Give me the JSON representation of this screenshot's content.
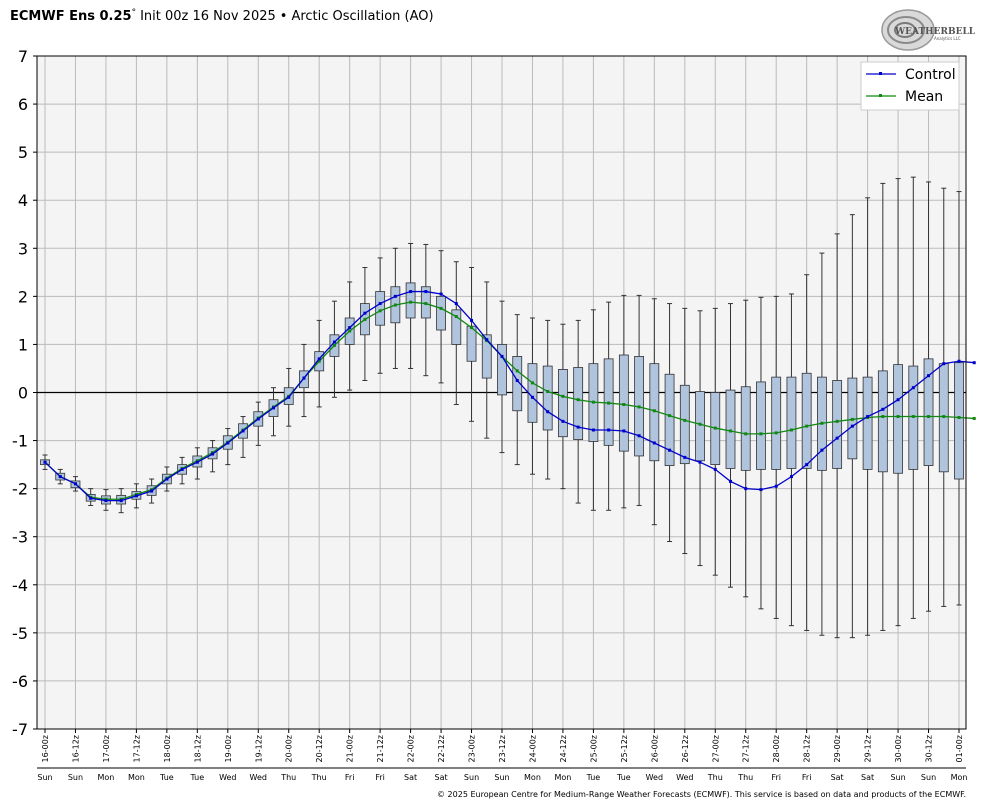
{
  "header": {
    "model": "ECMWF Ens 0.25",
    "degree": "°",
    "init": "Init 00z 16 Nov 2025",
    "bullet": "•",
    "index": "Arctic Oscillation (AO)"
  },
  "logo": {
    "text": "WEATHERBELL",
    "subtext": "Analytics LLC"
  },
  "copyright": "© 2025 European Centre for Medium-Range Weather Forecasts (ECMWF). This service is based on data and products of the ECMWF.",
  "colors": {
    "control": "#0000cc",
    "mean": "#118811",
    "box_fill": "#b0c4de",
    "plot_bg": "#f4f4f4",
    "grid": "#bbbbbb"
  },
  "chart_data": {
    "type": "box",
    "ylim": [
      -7,
      7
    ],
    "yticks": [
      -7,
      -6,
      -5,
      -4,
      -3,
      -2,
      -1,
      0,
      1,
      2,
      3,
      4,
      5,
      6,
      7
    ],
    "legend_position": "top-right",
    "grid": true,
    "x_tick_labels": [
      "16-00z",
      "16-12z",
      "17-00z",
      "17-12z",
      "18-00z",
      "18-12z",
      "19-00z",
      "19-12z",
      "20-00z",
      "20-12z",
      "21-00z",
      "21-12z",
      "22-00z",
      "22-12z",
      "23-00z",
      "23-12z",
      "24-00z",
      "24-12z",
      "25-00z",
      "25-12z",
      "26-00z",
      "26-12z",
      "27-00z",
      "27-12z",
      "28-00z",
      "28-12z",
      "29-00z",
      "29-12z",
      "30-00z",
      "30-12z",
      "01-00z"
    ],
    "x_day_labels": [
      "Sun",
      "Sun",
      "Mon",
      "Mon",
      "Tue",
      "Tue",
      "Wed",
      "Wed",
      "Thu",
      "Thu",
      "Fri",
      "Fri",
      "Sat",
      "Sat",
      "Sun",
      "Sun",
      "Mon",
      "Mon",
      "Tue",
      "Tue",
      "Wed",
      "Wed",
      "Thu",
      "Thu",
      "Fri",
      "Fri",
      "Sat",
      "Sat",
      "Sun",
      "Sun",
      "Mon"
    ],
    "series": [
      {
        "name": "Control",
        "values": [
          -1.45,
          -1.75,
          -1.9,
          -2.2,
          -2.25,
          -2.25,
          -2.15,
          -2.05,
          -1.8,
          -1.6,
          -1.45,
          -1.28,
          -1.05,
          -0.8,
          -0.55,
          -0.32,
          -0.1,
          0.3,
          0.7,
          1.05,
          1.35,
          1.65,
          1.85,
          2.0,
          2.1,
          2.1,
          2.05,
          1.85,
          1.5,
          1.1,
          0.75,
          0.25,
          -0.1,
          -0.4,
          -0.6,
          -0.72,
          -0.78,
          -0.78,
          -0.8,
          -0.9,
          -1.05,
          -1.2,
          -1.35,
          -1.45,
          -1.6,
          -1.85,
          -2.0,
          -2.02,
          -1.95,
          -1.75,
          -1.5,
          -1.2,
          -0.95,
          -0.7,
          -0.5,
          -0.35,
          -0.15,
          0.1,
          0.35,
          0.6,
          0.65,
          0.62
        ]
      },
      {
        "name": "Mean",
        "values": [
          -1.45,
          -1.75,
          -1.9,
          -2.18,
          -2.22,
          -2.22,
          -2.12,
          -2.02,
          -1.78,
          -1.58,
          -1.42,
          -1.25,
          -1.03,
          -0.78,
          -0.53,
          -0.3,
          -0.08,
          0.3,
          0.65,
          0.98,
          1.28,
          1.52,
          1.7,
          1.82,
          1.88,
          1.85,
          1.75,
          1.58,
          1.35,
          1.08,
          0.75,
          0.45,
          0.2,
          0.02,
          -0.08,
          -0.15,
          -0.2,
          -0.22,
          -0.25,
          -0.3,
          -0.38,
          -0.48,
          -0.58,
          -0.66,
          -0.74,
          -0.8,
          -0.86,
          -0.86,
          -0.84,
          -0.78,
          -0.7,
          -0.64,
          -0.6,
          -0.56,
          -0.52,
          -0.5,
          -0.5,
          -0.5,
          -0.5,
          -0.5,
          -0.52,
          -0.54
        ]
      }
    ],
    "boxes": [
      {
        "q1": -1.5,
        "q3": -1.4,
        "min": -1.6,
        "max": -1.3
      },
      {
        "q1": -1.82,
        "q3": -1.68,
        "min": -1.9,
        "max": -1.6
      },
      {
        "q1": -1.98,
        "q3": -1.84,
        "min": -2.05,
        "max": -1.75
      },
      {
        "q1": -2.26,
        "q3": -2.12,
        "min": -2.35,
        "max": -2.0
      },
      {
        "q1": -2.32,
        "q3": -2.15,
        "min": -2.45,
        "max": -2.02
      },
      {
        "q1": -2.32,
        "q3": -2.14,
        "min": -2.5,
        "max": -2.0
      },
      {
        "q1": -2.22,
        "q3": -2.06,
        "min": -2.4,
        "max": -1.9
      },
      {
        "q1": -2.14,
        "q3": -1.94,
        "min": -2.3,
        "max": -1.8
      },
      {
        "q1": -1.9,
        "q3": -1.7,
        "min": -2.05,
        "max": -1.55
      },
      {
        "q1": -1.7,
        "q3": -1.5,
        "min": -1.9,
        "max": -1.35
      },
      {
        "q1": -1.55,
        "q3": -1.32,
        "min": -1.8,
        "max": -1.15
      },
      {
        "q1": -1.38,
        "q3": -1.15,
        "min": -1.65,
        "max": -1.0
      },
      {
        "q1": -1.18,
        "q3": -0.9,
        "min": -1.5,
        "max": -0.75
      },
      {
        "q1": -0.95,
        "q3": -0.65,
        "min": -1.35,
        "max": -0.5
      },
      {
        "q1": -0.7,
        "q3": -0.4,
        "min": -1.1,
        "max": -0.2
      },
      {
        "q1": -0.5,
        "q3": -0.15,
        "min": -0.9,
        "max": 0.1
      },
      {
        "q1": -0.25,
        "q3": 0.1,
        "min": -0.7,
        "max": 0.5
      },
      {
        "q1": 0.1,
        "q3": 0.45,
        "min": -0.5,
        "max": 1.0
      },
      {
        "q1": 0.45,
        "q3": 0.85,
        "min": -0.3,
        "max": 1.5
      },
      {
        "q1": 0.75,
        "q3": 1.2,
        "min": -0.1,
        "max": 1.9
      },
      {
        "q1": 1.0,
        "q3": 1.55,
        "min": 0.05,
        "max": 2.3
      },
      {
        "q1": 1.2,
        "q3": 1.85,
        "min": 0.25,
        "max": 2.6
      },
      {
        "q1": 1.4,
        "q3": 2.1,
        "min": 0.4,
        "max": 2.8
      },
      {
        "q1": 1.45,
        "q3": 2.2,
        "min": 0.5,
        "max": 3.0
      },
      {
        "q1": 1.55,
        "q3": 2.28,
        "min": 0.5,
        "max": 3.1
      },
      {
        "q1": 1.55,
        "q3": 2.2,
        "min": 0.35,
        "max": 3.08
      },
      {
        "q1": 1.3,
        "q3": 2.0,
        "min": 0.2,
        "max": 2.95
      },
      {
        "q1": 1.0,
        "q3": 1.72,
        "min": -0.25,
        "max": 2.72
      },
      {
        "q1": 0.65,
        "q3": 1.38,
        "min": -0.6,
        "max": 2.6
      },
      {
        "q1": 0.3,
        "q3": 1.2,
        "min": -0.95,
        "max": 2.3
      },
      {
        "q1": -0.05,
        "q3": 1.0,
        "min": -1.25,
        "max": 1.9
      },
      {
        "q1": -0.38,
        "q3": 0.75,
        "min": -1.5,
        "max": 1.62
      },
      {
        "q1": -0.62,
        "q3": 0.6,
        "min": -1.7,
        "max": 1.55
      },
      {
        "q1": -0.78,
        "q3": 0.55,
        "min": -1.8,
        "max": 1.5
      },
      {
        "q1": -0.92,
        "q3": 0.48,
        "min": -2.0,
        "max": 1.42
      },
      {
        "q1": -0.98,
        "q3": 0.52,
        "min": -2.3,
        "max": 1.5
      },
      {
        "q1": -1.02,
        "q3": 0.6,
        "min": -2.45,
        "max": 1.72
      },
      {
        "q1": -1.1,
        "q3": 0.7,
        "min": -2.45,
        "max": 1.88
      },
      {
        "q1": -1.22,
        "q3": 0.78,
        "min": -2.4,
        "max": 2.02
      },
      {
        "q1": -1.32,
        "q3": 0.75,
        "min": -2.35,
        "max": 2.02
      },
      {
        "q1": -1.42,
        "q3": 0.6,
        "min": -2.75,
        "max": 1.95
      },
      {
        "q1": -1.52,
        "q3": 0.38,
        "min": -3.1,
        "max": 1.85
      },
      {
        "q1": -1.48,
        "q3": 0.15,
        "min": -3.35,
        "max": 1.75
      },
      {
        "q1": -1.42,
        "q3": 0.02,
        "min": -3.6,
        "max": 1.7
      },
      {
        "q1": -1.5,
        "q3": 0.0,
        "min": -3.8,
        "max": 1.75
      },
      {
        "q1": -1.58,
        "q3": 0.05,
        "min": -4.05,
        "max": 1.85
      },
      {
        "q1": -1.62,
        "q3": 0.12,
        "min": -4.25,
        "max": 1.92
      },
      {
        "q1": -1.6,
        "q3": 0.22,
        "min": -4.5,
        "max": 1.98
      },
      {
        "q1": -1.6,
        "q3": 0.32,
        "min": -4.7,
        "max": 2.0
      },
      {
        "q1": -1.58,
        "q3": 0.32,
        "min": -4.85,
        "max": 2.05
      },
      {
        "q1": -1.58,
        "q3": 0.4,
        "min": -4.95,
        "max": 2.45
      },
      {
        "q1": -1.62,
        "q3": 0.32,
        "min": -5.05,
        "max": 2.9
      },
      {
        "q1": -1.58,
        "q3": 0.25,
        "min": -5.1,
        "max": 3.3
      },
      {
        "q1": -1.38,
        "q3": 0.3,
        "min": -5.1,
        "max": 3.7
      },
      {
        "q1": -1.6,
        "q3": 0.32,
        "min": -5.05,
        "max": 4.05
      },
      {
        "q1": -1.65,
        "q3": 0.45,
        "min": -4.95,
        "max": 4.35
      },
      {
        "q1": -1.68,
        "q3": 0.58,
        "min": -4.85,
        "max": 4.45
      },
      {
        "q1": -1.6,
        "q3": 0.55,
        "min": -4.7,
        "max": 4.48
      },
      {
        "q1": -1.52,
        "q3": 0.7,
        "min": -4.55,
        "max": 4.38
      },
      {
        "q1": -1.65,
        "q3": 0.6,
        "min": -4.45,
        "max": 4.25
      },
      {
        "q1": -1.8,
        "q3": 0.62,
        "min": -4.42,
        "max": 4.18
      }
    ]
  }
}
